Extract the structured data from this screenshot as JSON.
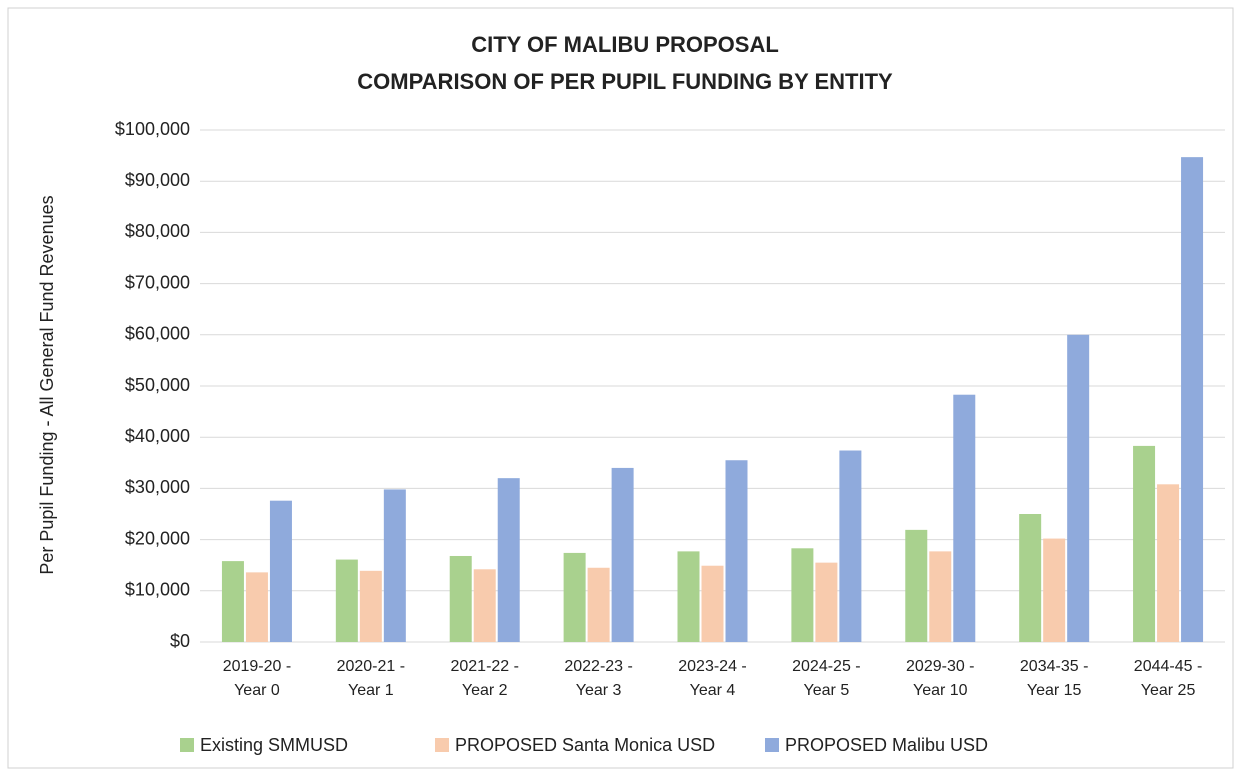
{
  "chart_data": {
    "type": "bar",
    "title": [
      "CITY OF MALIBU PROPOSAL",
      "COMPARISON OF PER PUPIL FUNDING BY ENTITY"
    ],
    "y_label": "Per Pupil Funding - All General Fund Revenues",
    "categories": [
      [
        "2019-20 -",
        "Year 0"
      ],
      [
        "2020-21 -",
        "Year 1"
      ],
      [
        "2021-22 -",
        "Year 2"
      ],
      [
        "2022-23 -",
        "Year 3"
      ],
      [
        "2023-24 -",
        "Year 4"
      ],
      [
        "2024-25 -",
        "Year 5"
      ],
      [
        "2029-30 -",
        "Year 10"
      ],
      [
        "2034-35 -",
        "Year 15"
      ],
      [
        "2044-45 -",
        "Year 25"
      ]
    ],
    "series": [
      {
        "name": "Existing SMMUSD",
        "color": "#a9d18e",
        "values": [
          15800,
          16100,
          16800,
          17400,
          17700,
          18300,
          21900,
          25000,
          38300
        ]
      },
      {
        "name": "PROPOSED Santa Monica USD",
        "color": "#f8cbad",
        "values": [
          13600,
          13900,
          14200,
          14500,
          14900,
          15500,
          17700,
          20200,
          30800
        ]
      },
      {
        "name": "PROPOSED Malibu USD",
        "color": "#8faadc",
        "values": [
          27600,
          29800,
          32000,
          34000,
          35500,
          37400,
          48300,
          60000,
          94700
        ]
      }
    ],
    "ylim": [
      0,
      100000
    ],
    "yticks": [
      {
        "value": 0,
        "label": "$0"
      },
      {
        "value": 10000,
        "label": "$10,000"
      },
      {
        "value": 20000,
        "label": "$20,000"
      },
      {
        "value": 30000,
        "label": "$30,000"
      },
      {
        "value": 40000,
        "label": "$40,000"
      },
      {
        "value": 50000,
        "label": "$50,000"
      },
      {
        "value": 60000,
        "label": "$60,000"
      },
      {
        "value": 70000,
        "label": "$70,000"
      },
      {
        "value": 80000,
        "label": "$80,000"
      },
      {
        "value": 90000,
        "label": "$90,000"
      },
      {
        "value": 100000,
        "label": "$100,000"
      }
    ],
    "grid": true,
    "legend": "bottom"
  }
}
